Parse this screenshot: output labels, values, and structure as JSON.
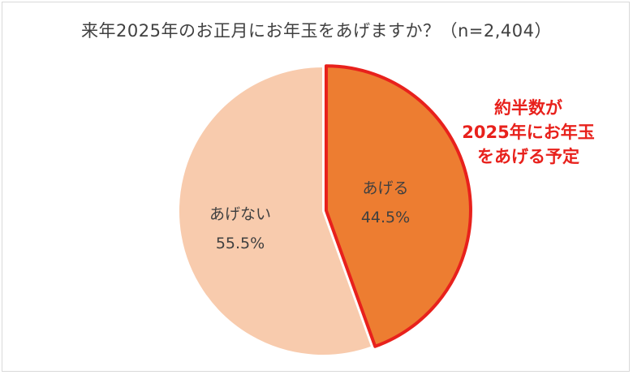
{
  "chart_data": {
    "type": "pie",
    "title": "来年2025年のお正月にお年玉をあげますか？（n=2,404）",
    "slices": [
      {
        "label": "あげる",
        "value": 44.5,
        "value_label": "44.5%",
        "color": "#ed7d31",
        "highlighted": true
      },
      {
        "label": "あげない",
        "value": 55.5,
        "value_label": "55.5%",
        "color": "#f8cbad",
        "highlighted": false
      }
    ],
    "start_angle": "12 o'clock",
    "direction": "clockwise",
    "highlight_outline_color": "#e8211c",
    "annotation": {
      "lines": [
        "約半数が",
        "2025年にお年玉",
        "をあげる予定"
      ],
      "color": "#e8211c"
    }
  }
}
